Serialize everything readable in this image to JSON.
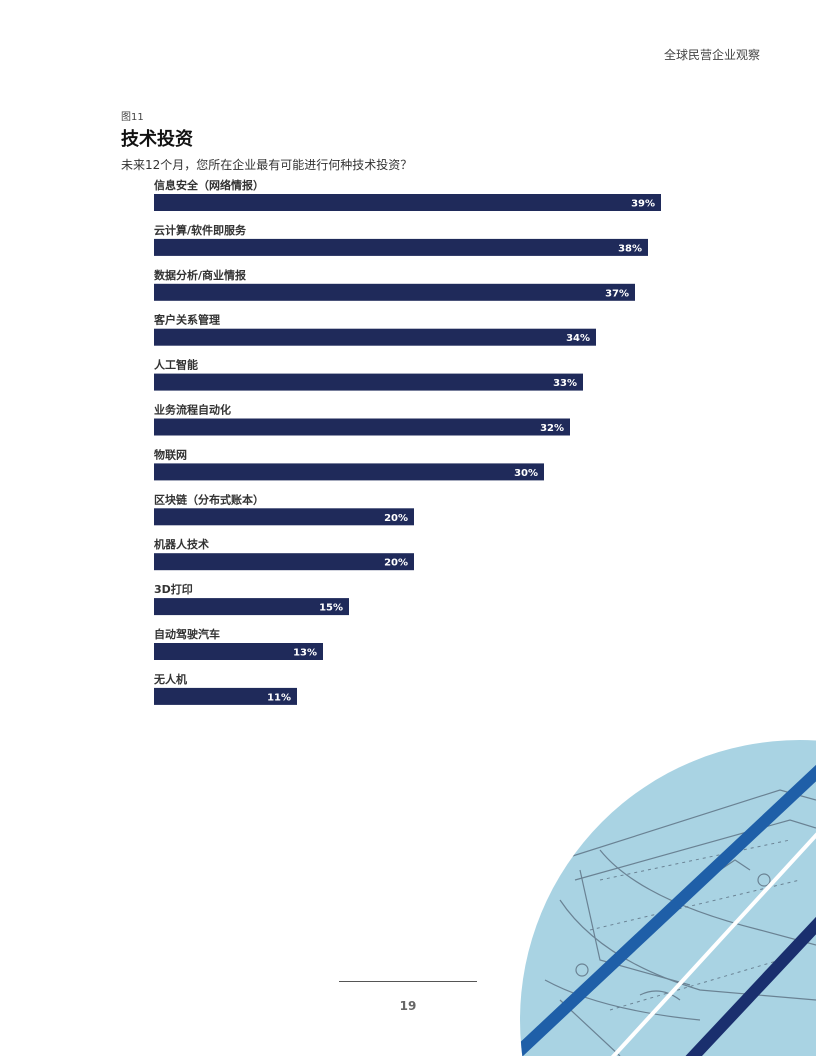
{
  "page": {
    "header_title": "全球民营企业观察",
    "page_number": "19"
  },
  "figure": {
    "label": "图11",
    "title": "技术投资",
    "subtitle": "未来12个月，您所在企业最有可能进行何种技术投资？"
  },
  "colors": {
    "bar": "#1f2a5a",
    "decor_circle": "#a9d3e3",
    "decor_stripe_dark": "#1a2f6e",
    "decor_stripe_mid": "#1f5fa8"
  },
  "chart_data": {
    "type": "bar",
    "orientation": "horizontal",
    "categories": [
      "信息安全（网络情报）",
      "云计算/软件即服务",
      "数据分析/商业情报",
      "客户关系管理",
      "人工智能",
      "业务流程自动化",
      "物联网",
      "区块链（分布式账本）",
      "机器人技术",
      "3D打印",
      "自动驾驶汽车",
      "无人机"
    ],
    "values": [
      39,
      38,
      37,
      34,
      33,
      32,
      30,
      20,
      20,
      15,
      13,
      11
    ],
    "value_labels": [
      "39%",
      "38%",
      "37%",
      "34%",
      "33%",
      "32%",
      "30%",
      "20%",
      "20%",
      "15%",
      "13%",
      "11%"
    ],
    "unit": "%",
    "xlim": [
      0,
      39
    ],
    "grid": false,
    "legend": "none"
  }
}
